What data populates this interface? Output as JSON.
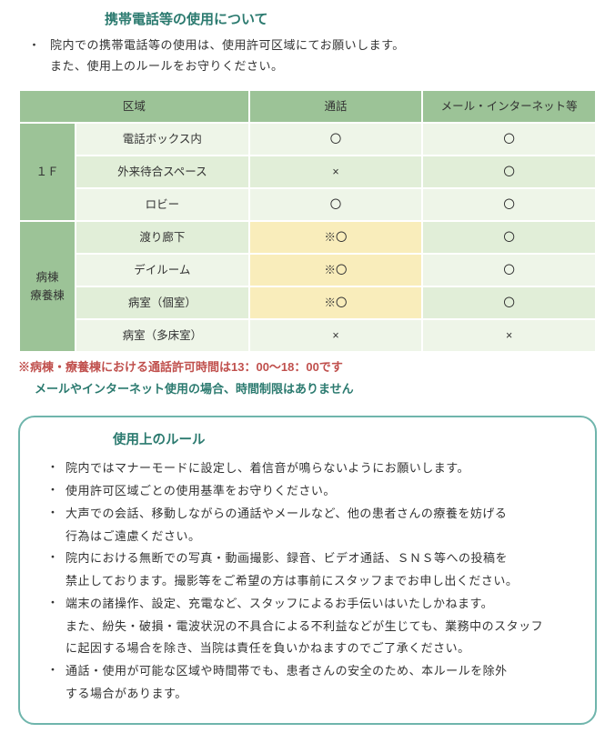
{
  "title": "携帯電話等の使用について",
  "intro": {
    "bullet": "・",
    "line1": "院内での携帯電話等の使用は、使用許可区域にてお願いします。",
    "line2": "また、使用上のルールをお守りください。"
  },
  "table": {
    "col_widths": [
      "62px",
      "auto",
      "auto",
      "auto"
    ],
    "header": {
      "zone": "区域",
      "call": "通話",
      "net": "メール・インターネット等"
    },
    "group1": {
      "label": "１Ｆ",
      "rows": [
        {
          "zone": "電話ボックス内",
          "call": "〇",
          "net": "〇",
          "alt": false,
          "hl": false
        },
        {
          "zone": "外来待合スペース",
          "call": "×",
          "net": "〇",
          "alt": true,
          "hl": false
        },
        {
          "zone": "ロビー",
          "call": "〇",
          "net": "〇",
          "alt": false,
          "hl": false
        }
      ]
    },
    "group2": {
      "label": "病棟\n療養棟",
      "rows": [
        {
          "zone": "渡り廊下",
          "call": "※〇",
          "net": "〇",
          "alt": true,
          "hl": true
        },
        {
          "zone": "デイルーム",
          "call": "※〇",
          "net": "〇",
          "alt": false,
          "hl": true
        },
        {
          "zone": "病室（個室）",
          "call": "※〇",
          "net": "〇",
          "alt": true,
          "hl": true
        },
        {
          "zone": "病室（多床室）",
          "call": "×",
          "net": "×",
          "alt": false,
          "hl": false
        }
      ]
    }
  },
  "note1": "※病棟・療養棟における通話許可時間は13：00～18：00です",
  "note2": "メールやインターネット使用の場合、時間制限はありません",
  "rules": {
    "title": "使用上のルール",
    "bullet": "・",
    "items": [
      [
        "院内ではマナーモードに設定し、着信音が鳴らないようにお願いします。"
      ],
      [
        "使用許可区域ごとの使用基準をお守りください。"
      ],
      [
        "大声での会話、移動しながらの通話やメールなど、他の患者さんの療養を妨げる",
        "行為はご遠慮ください。"
      ],
      [
        "院内における無断での写真・動画撮影、録音、ビデオ通話、ＳＮＳ等への投稿を",
        "禁止しております。撮影等をご希望の方は事前にスタッフまでお申し出ください。"
      ],
      [
        "端末の諸操作、設定、充電など、スタッフによるお手伝いはいたしかねます。",
        "また、紛失・破損・電波状況の不具合による不利益などが生じても、業務中のスタッフ",
        "に起因する場合を除き、当院は責任を負いかねますのでご了承ください。"
      ],
      [
        "通話・使用が可能な区域や時間帯でも、患者さんの安全のため、本ルールを除外",
        "する場合があります。"
      ]
    ]
  },
  "colors": {
    "accent": "#2b7a6f",
    "warn": "#c0504d",
    "hdr_bg": "#9cc397",
    "cell_a": "#eef5e8",
    "cell_b": "#e1eed8",
    "highlight": "#f9edbb",
    "border": "#6fb5ac"
  }
}
